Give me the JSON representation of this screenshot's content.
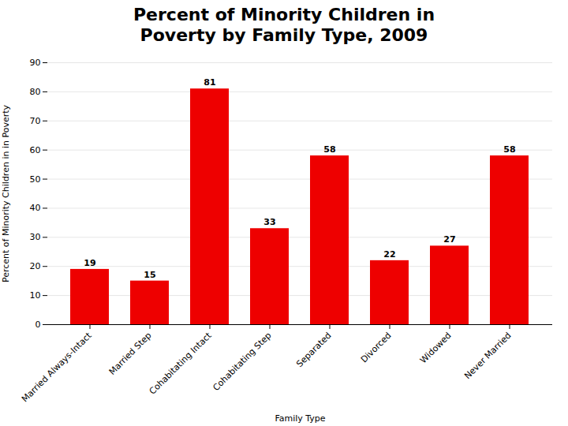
{
  "chart_data": {
    "type": "bar",
    "title": "Percent of Minority Children in\nPoverty by Family Type, 2009",
    "xlabel": "Family Type",
    "ylabel": "Percent of Minority Children in in Poverty",
    "categories": [
      "Married Always-Intact",
      "Married Step",
      "Cohabitating Intact",
      "Cohabitating Step",
      "Separated",
      "Divorced",
      "Widowed",
      "Never Married"
    ],
    "values": [
      19,
      15,
      81,
      33,
      58,
      22,
      27,
      58
    ],
    "color": "#EE0000",
    "ylim": [
      0,
      90
    ],
    "yticks": [
      0,
      10,
      20,
      30,
      40,
      50,
      60,
      70,
      80,
      90
    ],
    "grid": true,
    "data_labels": true
  }
}
